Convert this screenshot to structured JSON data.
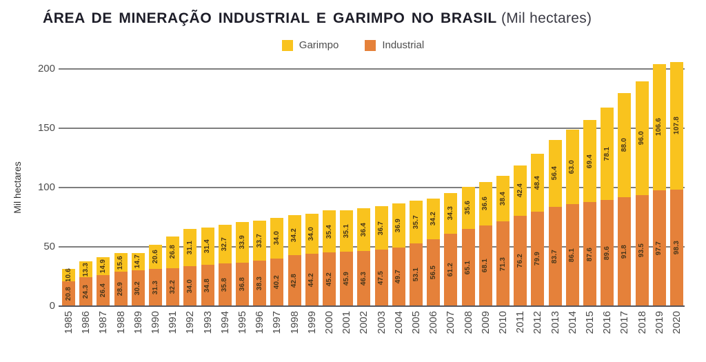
{
  "title": {
    "main": "ÁREA DE MINERAÇÃO INDUSTRIAL E GARIMPO NO BRASIL",
    "suffix": " (Mil hectares)"
  },
  "chart_data": {
    "type": "bar",
    "stacked": true,
    "title": "ÁREA DE MINERAÇÃO INDUSTRIAL E GARIMPO NO BRASIL (Mil hectares)",
    "ylabel": "Mil hectares",
    "xlabel": "",
    "ylim": [
      0,
      210
    ],
    "yticks": [
      0,
      50,
      100,
      150,
      200
    ],
    "grid": true,
    "legend_position": "top-center",
    "value_label_format": "one decimal, rotated 90deg CCW, centered in segment",
    "stack_order_bottom_to_top": [
      "Industrial",
      "Garimpo"
    ],
    "categories": [
      "1985",
      "1986",
      "1987",
      "1988",
      "1989",
      "1990",
      "1991",
      "1992",
      "1993",
      "1994",
      "1995",
      "1996",
      "1997",
      "1998",
      "1999",
      "2000",
      "2001",
      "2002",
      "2003",
      "2004",
      "2005",
      "2006",
      "2007",
      "2008",
      "2009",
      "2010",
      "2011",
      "2012",
      "2013",
      "2014",
      "2015",
      "2016",
      "2017",
      "2018",
      "2019",
      "2020"
    ],
    "series": [
      {
        "name": "Garimpo",
        "color": "#F9C31E",
        "values": [
          10.6,
          13.3,
          14.9,
          15.6,
          14.7,
          20.6,
          26.8,
          31.1,
          31.4,
          32.7,
          33.9,
          33.7,
          34.0,
          34.2,
          34.0,
          35.4,
          35.1,
          36.4,
          36.7,
          36.9,
          35.7,
          34.2,
          34.3,
          35.6,
          36.6,
          38.4,
          42.4,
          48.4,
          56.4,
          63.0,
          69.4,
          78.1,
          88.0,
          96.0,
          106.6,
          107.8
        ]
      },
      {
        "name": "Industrial",
        "color": "#E5813A",
        "values": [
          20.8,
          24.3,
          26.4,
          28.9,
          30.2,
          31.3,
          32.2,
          34.0,
          34.8,
          35.8,
          36.8,
          38.3,
          40.2,
          42.8,
          44.2,
          45.2,
          45.9,
          46.3,
          47.5,
          49.7,
          53.1,
          56.5,
          61.2,
          65.1,
          68.1,
          71.3,
          76.2,
          79.9,
          83.7,
          86.1,
          87.6,
          89.6,
          91.8,
          93.5,
          97.7,
          98.3
        ]
      }
    ]
  },
  "colors": {
    "garimpo": "#F9C31E",
    "industrial": "#E5813A",
    "title_text": "#1d1d28",
    "axis_text": "#4d4d4d",
    "gridline": "#7d7d7d",
    "value_label_text": "#46351a",
    "background": "#ffffff"
  }
}
